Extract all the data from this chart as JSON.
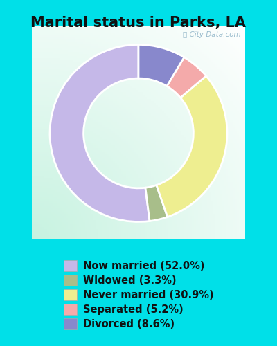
{
  "title": "Marital status in Parks, LA",
  "watermark": "ⓘ City-Data.com",
  "slices": [
    52.0,
    3.3,
    30.9,
    5.2,
    8.6
  ],
  "labels": [
    "Now married (52.0%)",
    "Widowed (3.3%)",
    "Never married (30.9%)",
    "Separated (5.2%)",
    "Divorced (8.6%)"
  ],
  "colors": [
    "#c5b8e8",
    "#a8be8a",
    "#eeee90",
    "#f4aaaa",
    "#8888cc"
  ],
  "bg_outer": "#00e0e8",
  "bg_chart_topleft": "#c8ede0",
  "bg_chart_center": "#e8f8f0",
  "title_fontsize": 15,
  "legend_fontsize": 10.5,
  "start_angle": 90
}
